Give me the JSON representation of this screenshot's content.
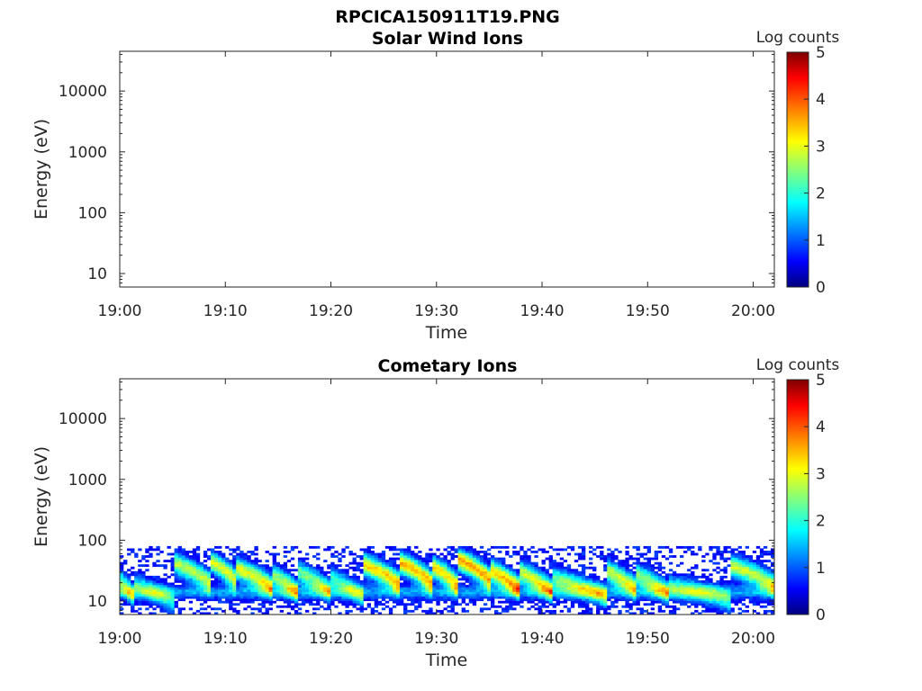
{
  "figure": {
    "filename": "RPCICA150911T19.PNG"
  },
  "colorbar": {
    "label": "Log counts",
    "range": [
      0,
      5
    ],
    "ticks": [
      "0",
      "1",
      "2",
      "3",
      "4",
      "5"
    ],
    "colormap": "jet"
  },
  "chart_data": [
    {
      "type": "heatmap",
      "title": "Solar Wind Ions",
      "xlabel": "Time",
      "ylabel": "Energy (eV)",
      "yscale": "log",
      "ylim": [
        6,
        45000
      ],
      "xlim_minutes": [
        0,
        62
      ],
      "xticks": [
        "19:00",
        "19:10",
        "19:20",
        "19:30",
        "19:40",
        "19:50",
        "20:00"
      ],
      "yticks": [
        {
          "value": 10,
          "label": "10"
        },
        {
          "value": 100,
          "label": "100"
        },
        {
          "value": 1000,
          "label": "1000"
        },
        {
          "value": 10000,
          "label": "10000"
        }
      ],
      "bands": []
    },
    {
      "type": "heatmap",
      "title": "Cometary Ions",
      "xlabel": "Time",
      "ylabel": "Energy (eV)",
      "yscale": "log",
      "ylim": [
        6,
        45000
      ],
      "xlim_minutes": [
        0,
        62
      ],
      "xticks": [
        "19:00",
        "19:10",
        "19:20",
        "19:30",
        "19:40",
        "19:50",
        "20:00"
      ],
      "yticks": [
        {
          "value": 10,
          "label": "10"
        },
        {
          "value": 100,
          "label": "100"
        },
        {
          "value": 1000,
          "label": "1000"
        },
        {
          "value": 10000,
          "label": "10000"
        }
      ],
      "signal_energy_range_eV": [
        6,
        80
      ],
      "bands": [
        {
          "t_start": 0,
          "t_end": 1.5,
          "peak_energy": 16,
          "peak_log_counts": 2.3
        },
        {
          "t_start": 1.5,
          "t_end": 5,
          "peak_energy": 14,
          "peak_log_counts": 1.8
        },
        {
          "t_start": 5,
          "t_end": 8.5,
          "peak_energy": 32,
          "peak_log_counts": 2.8
        },
        {
          "t_start": 8.5,
          "t_end": 11,
          "peak_energy": 34,
          "peak_log_counts": 3.0
        },
        {
          "t_start": 11,
          "t_end": 14.5,
          "peak_energy": 26,
          "peak_log_counts": 3.1
        },
        {
          "t_start": 14.5,
          "t_end": 17,
          "peak_energy": 20,
          "peak_log_counts": 2.6
        },
        {
          "t_start": 17,
          "t_end": 20,
          "peak_energy": 22,
          "peak_log_counts": 2.4
        },
        {
          "t_start": 20,
          "t_end": 23,
          "peak_energy": 18,
          "peak_log_counts": 2.0
        },
        {
          "t_start": 23,
          "t_end": 26.5,
          "peak_energy": 30,
          "peak_log_counts": 3.4
        },
        {
          "t_start": 26.5,
          "t_end": 29.5,
          "peak_energy": 32,
          "peak_log_counts": 3.6
        },
        {
          "t_start": 29.5,
          "t_end": 32,
          "peak_energy": 28,
          "peak_log_counts": 3.3
        },
        {
          "t_start": 32,
          "t_end": 35,
          "peak_energy": 36,
          "peak_log_counts": 3.7
        },
        {
          "t_start": 35,
          "t_end": 38,
          "peak_energy": 24,
          "peak_log_counts": 3.5
        },
        {
          "t_start": 38,
          "t_end": 41,
          "peak_energy": 22,
          "peak_log_counts": 3.0
        },
        {
          "t_start": 41,
          "t_end": 46,
          "peak_energy": 18,
          "peak_log_counts": 2.4
        },
        {
          "t_start": 46,
          "t_end": 49,
          "peak_energy": 24,
          "peak_log_counts": 2.9
        },
        {
          "t_start": 49,
          "t_end": 52,
          "peak_energy": 20,
          "peak_log_counts": 2.6
        },
        {
          "t_start": 52,
          "t_end": 58,
          "peak_energy": 14,
          "peak_log_counts": 1.8
        },
        {
          "t_start": 58,
          "t_end": 62,
          "peak_energy": 28,
          "peak_log_counts": 2.9
        }
      ]
    }
  ]
}
